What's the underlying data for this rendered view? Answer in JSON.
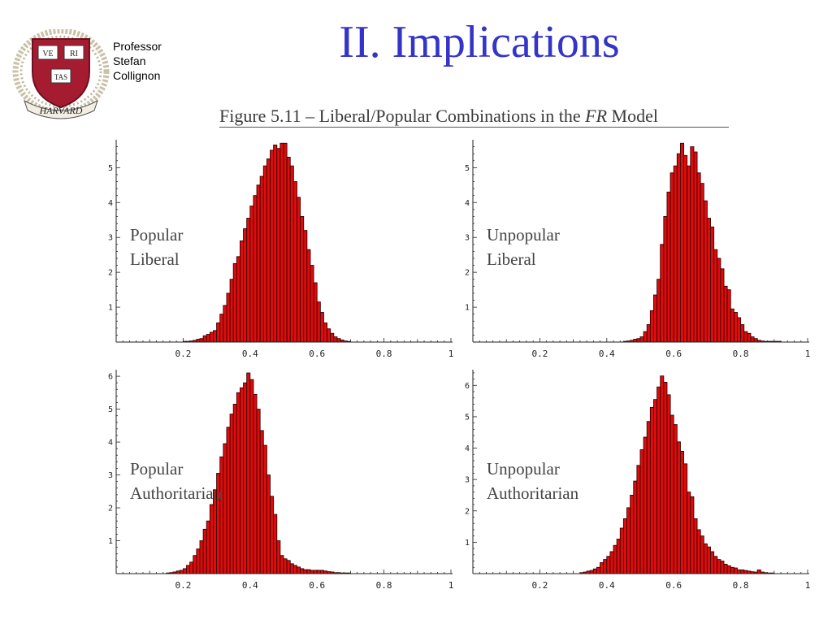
{
  "header": {
    "seal_text": [
      "VE",
      "RI",
      "TAS",
      "HARVARD"
    ],
    "presenter": [
      "Professor",
      "Stefan",
      "Collignon"
    ],
    "title": "II. Implications"
  },
  "figure": {
    "caption_prefix": "Figure 5.11 – Liberal/Popular Combinations in the ",
    "caption_italic": "FR",
    "caption_suffix": " Model"
  },
  "colors": {
    "bar_fill": "#dd0d0d",
    "bar_stroke": "#3a0000",
    "title": "#3434c8"
  },
  "chart_data": [
    {
      "type": "bar",
      "label_lines": [
        "Popular",
        "Liberal"
      ],
      "xlim": [
        0,
        1
      ],
      "ylim": [
        0,
        5.8
      ],
      "x_ticks": [
        0.2,
        0.4,
        0.6,
        0.8,
        1
      ],
      "x_tick_labels": [
        "0.2",
        "0.4",
        "0.6",
        "0.8",
        "1"
      ],
      "y_ticks": [
        1,
        2,
        3,
        4,
        5
      ],
      "y_tick_labels": [
        "1",
        "2",
        "3",
        "4",
        "5"
      ],
      "grid": false,
      "bin_width": 0.01,
      "bin_start": [
        0.2,
        0.21,
        0.22,
        0.23,
        0.24,
        0.25,
        0.26,
        0.27,
        0.28,
        0.29,
        0.3,
        0.31,
        0.32,
        0.33,
        0.34,
        0.35,
        0.36,
        0.37,
        0.38,
        0.39,
        0.4,
        0.41,
        0.42,
        0.43,
        0.44,
        0.45,
        0.46,
        0.47,
        0.48,
        0.49,
        0.5,
        0.51,
        0.52,
        0.53,
        0.54,
        0.55,
        0.56,
        0.57,
        0.58,
        0.59,
        0.6,
        0.61,
        0.62,
        0.63,
        0.64,
        0.65,
        0.66,
        0.67,
        0.68,
        0.69
      ],
      "density": [
        0.02,
        0.02,
        0.03,
        0.05,
        0.08,
        0.1,
        0.18,
        0.22,
        0.28,
        0.33,
        0.55,
        0.8,
        1.05,
        1.4,
        1.8,
        2.25,
        2.45,
        2.9,
        3.25,
        3.55,
        3.9,
        4.2,
        4.5,
        4.75,
        5.05,
        5.25,
        5.5,
        5.65,
        5.55,
        5.7,
        5.7,
        5.3,
        5.05,
        4.6,
        4.15,
        3.6,
        3.2,
        2.65,
        2.2,
        1.7,
        1.15,
        0.85,
        0.55,
        0.38,
        0.25,
        0.15,
        0.1,
        0.06,
        0.03,
        0.02
      ]
    },
    {
      "type": "bar",
      "label_lines": [
        "Unpopular",
        "Liberal"
      ],
      "xlim": [
        0,
        1
      ],
      "ylim": [
        0,
        5.8
      ],
      "x_ticks": [
        0.2,
        0.4,
        0.6,
        0.8,
        1
      ],
      "x_tick_labels": [
        "0.2",
        "0.4",
        "0.6",
        "0.8",
        "1"
      ],
      "y_ticks": [
        1,
        2,
        3,
        4,
        5
      ],
      "y_tick_labels": [
        "1",
        "2",
        "3",
        "4",
        "5"
      ],
      "grid": false,
      "bin_width": 0.01,
      "bin_start": [
        0.45,
        0.46,
        0.47,
        0.48,
        0.49,
        0.5,
        0.51,
        0.52,
        0.53,
        0.54,
        0.55,
        0.56,
        0.57,
        0.58,
        0.59,
        0.6,
        0.61,
        0.62,
        0.63,
        0.64,
        0.65,
        0.66,
        0.67,
        0.68,
        0.69,
        0.7,
        0.71,
        0.72,
        0.73,
        0.74,
        0.75,
        0.76,
        0.77,
        0.78,
        0.79,
        0.8,
        0.81,
        0.82,
        0.83,
        0.84,
        0.85,
        0.86,
        0.87,
        0.88,
        0.89,
        0.9,
        0.91
      ],
      "density": [
        0.02,
        0.03,
        0.05,
        0.08,
        0.1,
        0.15,
        0.3,
        0.5,
        0.9,
        1.35,
        1.8,
        2.8,
        3.6,
        4.3,
        4.85,
        5.05,
        5.4,
        5.7,
        5.35,
        5.05,
        5.6,
        5.45,
        4.85,
        4.55,
        4.05,
        3.55,
        3.3,
        2.65,
        2.4,
        2.1,
        1.6,
        1.5,
        0.95,
        0.85,
        0.7,
        0.5,
        0.3,
        0.25,
        0.15,
        0.1,
        0.05,
        0.03,
        0.02,
        0.02,
        0.02,
        0.02,
        0.02
      ]
    },
    {
      "type": "bar",
      "label_lines": [
        "Popular",
        "Authoritarian"
      ],
      "xlim": [
        0,
        1
      ],
      "ylim": [
        0,
        6.2
      ],
      "x_ticks": [
        0.2,
        0.4,
        0.6,
        0.8,
        1
      ],
      "x_tick_labels": [
        "0.2",
        "0.4",
        "0.6",
        "0.8",
        "1"
      ],
      "y_ticks": [
        1,
        2,
        3,
        4,
        5,
        6
      ],
      "y_tick_labels": [
        "1",
        "2",
        "3",
        "4",
        "5",
        "6"
      ],
      "grid": false,
      "bin_width": 0.01,
      "bin_start": [
        0.15,
        0.16,
        0.17,
        0.18,
        0.19,
        0.2,
        0.21,
        0.22,
        0.23,
        0.24,
        0.25,
        0.26,
        0.27,
        0.28,
        0.29,
        0.3,
        0.31,
        0.32,
        0.33,
        0.34,
        0.35,
        0.36,
        0.37,
        0.38,
        0.39,
        0.4,
        0.41,
        0.42,
        0.43,
        0.44,
        0.45,
        0.46,
        0.47,
        0.48,
        0.49,
        0.5,
        0.51,
        0.52,
        0.53,
        0.54,
        0.55,
        0.56,
        0.57,
        0.58,
        0.59,
        0.6,
        0.61,
        0.62,
        0.63,
        0.64,
        0.65,
        0.66,
        0.67,
        0.68,
        0.69
      ],
      "density": [
        0.02,
        0.03,
        0.05,
        0.08,
        0.1,
        0.15,
        0.25,
        0.35,
        0.55,
        0.75,
        1.0,
        1.35,
        1.6,
        2.1,
        2.55,
        3.05,
        3.55,
        3.95,
        4.45,
        4.85,
        5.15,
        5.5,
        5.65,
        5.8,
        6.1,
        5.9,
        5.45,
        5.0,
        4.35,
        3.9,
        3.0,
        2.35,
        1.8,
        1.0,
        0.55,
        0.45,
        0.4,
        0.3,
        0.25,
        0.2,
        0.15,
        0.12,
        0.12,
        0.1,
        0.1,
        0.1,
        0.1,
        0.08,
        0.06,
        0.05,
        0.03,
        0.03,
        0.02,
        0.02,
        0.02
      ]
    },
    {
      "type": "bar",
      "label_lines": [
        "Unpopular",
        "Authoritarian"
      ],
      "xlim": [
        0,
        1
      ],
      "ylim": [
        0,
        6.5
      ],
      "x_ticks": [
        0.2,
        0.4,
        0.6,
        0.8,
        1
      ],
      "x_tick_labels": [
        "0.2",
        "0.4",
        "0.6",
        "0.8",
        "1"
      ],
      "y_ticks": [
        1,
        2,
        3,
        4,
        5,
        6
      ],
      "y_tick_labels": [
        "1",
        "2",
        "3",
        "4",
        "5",
        "6"
      ],
      "grid": false,
      "bin_width": 0.01,
      "bin_start": [
        0.32,
        0.33,
        0.34,
        0.35,
        0.36,
        0.37,
        0.38,
        0.39,
        0.4,
        0.41,
        0.42,
        0.43,
        0.44,
        0.45,
        0.46,
        0.47,
        0.48,
        0.49,
        0.5,
        0.51,
        0.52,
        0.53,
        0.54,
        0.55,
        0.56,
        0.57,
        0.58,
        0.59,
        0.6,
        0.61,
        0.62,
        0.63,
        0.64,
        0.65,
        0.66,
        0.67,
        0.68,
        0.69,
        0.7,
        0.71,
        0.72,
        0.73,
        0.74,
        0.75,
        0.76,
        0.77,
        0.78,
        0.79,
        0.8,
        0.81,
        0.82,
        0.83,
        0.84,
        0.85,
        0.86,
        0.87,
        0.88,
        0.89
      ],
      "density": [
        0.03,
        0.05,
        0.08,
        0.1,
        0.15,
        0.2,
        0.35,
        0.45,
        0.55,
        0.7,
        0.9,
        1.1,
        1.45,
        1.75,
        2.1,
        2.5,
        2.95,
        3.45,
        3.95,
        4.35,
        4.85,
        5.3,
        5.55,
        5.95,
        6.3,
        6.1,
        5.7,
        5.05,
        4.75,
        4.2,
        3.9,
        3.5,
        2.6,
        2.45,
        1.75,
        1.4,
        1.2,
        0.95,
        0.85,
        0.7,
        0.55,
        0.45,
        0.4,
        0.3,
        0.25,
        0.2,
        0.18,
        0.12,
        0.12,
        0.1,
        0.08,
        0.06,
        0.05,
        0.12,
        0.05,
        0.03,
        0.02,
        0.02
      ]
    }
  ]
}
